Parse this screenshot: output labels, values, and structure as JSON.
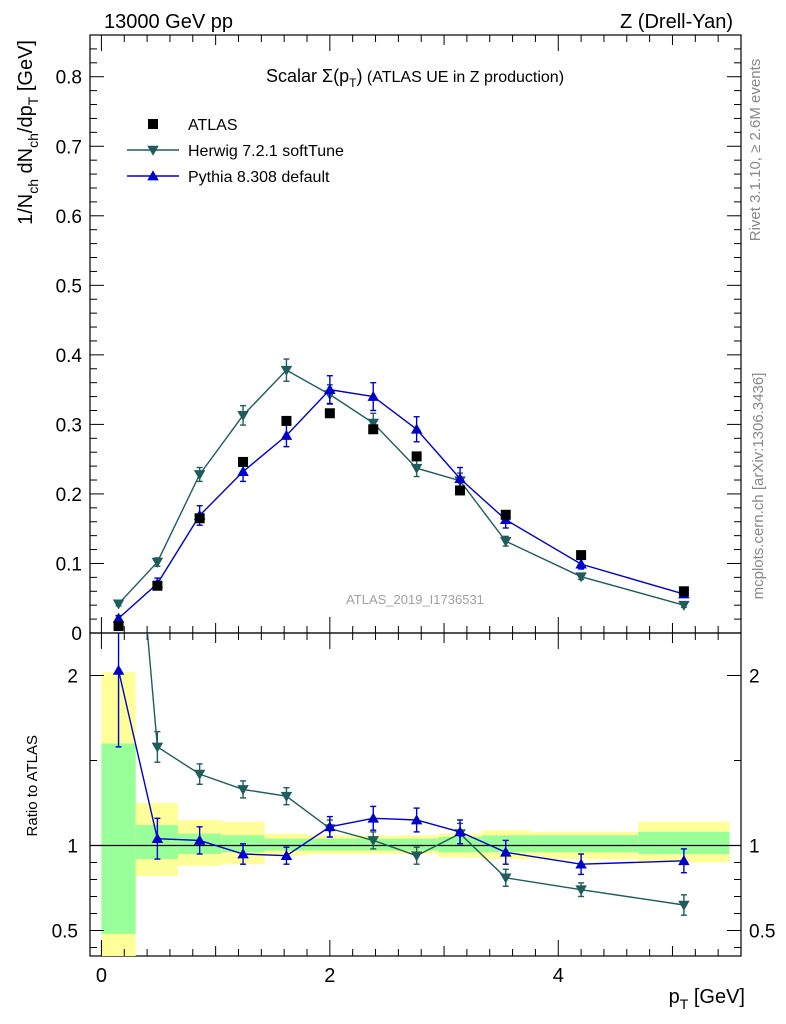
{
  "header": {
    "left": "13000 GeV pp",
    "right": "Z (Drell-Yan)"
  },
  "title": {
    "prefix": "Scalar ",
    "sigma": "Σ(p",
    "sigma_sub": "T",
    "sigma_close": ")",
    "suffix": " (ATLAS UE in Z production)"
  },
  "side": {
    "rivet": "Rivet 3.1.10, ≥ 2.6M events",
    "mcplots": "mcplots.cern.ch [arXiv:1306.3436]"
  },
  "watermark": "ATLAS_2019_I1736531",
  "axes": {
    "ylabel_main": {
      "a": "1/N",
      "a_sub": "ch",
      "b": " dN",
      "b_sub": "ch",
      "c": "/dp",
      "c_sub": "T",
      "d": " [GeV]"
    },
    "ylabel_ratio": "Ratio to ATLAS",
    "xlabel": {
      "a": "p",
      "a_sub": "T",
      "b": " [GeV]"
    }
  },
  "legend": [
    {
      "label": "ATLAS",
      "marker": "square",
      "color": "#000000"
    },
    {
      "label": "Herwig 7.2.1 softTune",
      "marker": "triangle-down",
      "color": "#1f5c5c"
    },
    {
      "label": "Pythia 8.308 default",
      "marker": "triangle-up",
      "color": "#0000cc"
    }
  ],
  "chart_data": {
    "type": "scatter",
    "xlim": [
      -0.1,
      5.6
    ],
    "ylim_main": [
      0,
      0.86
    ],
    "ylim_ratio": [
      0.35,
      2.25
    ],
    "x_ticks": [
      0,
      2,
      4
    ],
    "y_ticks_main": [
      0,
      0.1,
      0.2,
      0.3,
      0.4,
      0.5,
      0.6,
      0.7,
      0.8
    ],
    "y_tick_labels_main": [
      "0",
      "0.1",
      "0.2",
      "0.3",
      "0.4",
      "0.5",
      "0.6",
      "0.7",
      "0.8"
    ],
    "y_ticks_ratio": [
      0.5,
      1,
      2
    ],
    "y_tick_labels_ratio": [
      "0.5",
      "1",
      "2"
    ],
    "bins": [
      [
        0.0,
        0.3
      ],
      [
        0.3,
        0.67
      ],
      [
        0.67,
        1.05
      ],
      [
        1.05,
        1.43
      ],
      [
        1.43,
        1.8
      ],
      [
        1.8,
        2.2
      ],
      [
        2.2,
        2.57
      ],
      [
        2.57,
        2.95
      ],
      [
        2.95,
        3.33
      ],
      [
        3.33,
        3.75
      ],
      [
        3.75,
        4.7
      ],
      [
        4.7,
        5.5
      ]
    ],
    "x": [
      0.15,
      0.49,
      0.86,
      1.24,
      1.62,
      2.0,
      2.38,
      2.76,
      3.14,
      3.54,
      4.2,
      5.1
    ],
    "data": {
      "name": "ATLAS",
      "values": [
        0.01,
        0.068,
        0.165,
        0.246,
        0.305,
        0.316,
        0.293,
        0.254,
        0.205,
        0.17,
        0.112,
        0.06
      ],
      "band_inner": [
        [
          0.48,
          1.6
        ],
        [
          0.92,
          1.12
        ],
        [
          0.95,
          1.07
        ],
        [
          0.96,
          1.06
        ],
        [
          0.97,
          1.04
        ],
        [
          0.97,
          1.04
        ],
        [
          0.97,
          1.04
        ],
        [
          0.97,
          1.04
        ],
        [
          0.96,
          1.05
        ],
        [
          0.96,
          1.06
        ],
        [
          0.96,
          1.06
        ],
        [
          0.95,
          1.08
        ]
      ],
      "band_outer": [
        [
          0.33,
          2.02
        ],
        [
          0.82,
          1.25
        ],
        [
          0.88,
          1.15
        ],
        [
          0.89,
          1.14
        ],
        [
          0.94,
          1.07
        ],
        [
          0.95,
          1.06
        ],
        [
          0.95,
          1.06
        ],
        [
          0.95,
          1.06
        ],
        [
          0.93,
          1.07
        ],
        [
          0.92,
          1.09
        ],
        [
          0.92,
          1.08
        ],
        [
          0.9,
          1.14
        ]
      ]
    },
    "series": [
      {
        "name": "Herwig 7.2.1 softTune",
        "color": "#1f5c5c",
        "marker": "triangle-down",
        "values": [
          0.042,
          0.102,
          0.228,
          0.313,
          0.378,
          0.343,
          0.302,
          0.237,
          0.219,
          0.132,
          0.081,
          0.04
        ],
        "errors": [
          0.003,
          0.006,
          0.01,
          0.014,
          0.016,
          0.014,
          0.014,
          0.012,
          0.011,
          0.007,
          0.004,
          0.003
        ],
        "ratio": [
          4.2,
          1.58,
          1.42,
          1.33,
          1.29,
          1.1,
          1.03,
          0.94,
          1.07,
          0.81,
          0.74,
          0.65
        ],
        "ratio_err": [
          0.3,
          0.09,
          0.06,
          0.05,
          0.05,
          0.05,
          0.05,
          0.05,
          0.06,
          0.05,
          0.04,
          0.06
        ]
      },
      {
        "name": "Pythia 8.308 default",
        "color": "#0000cc",
        "marker": "triangle-up",
        "values": [
          0.021,
          0.071,
          0.169,
          0.232,
          0.284,
          0.35,
          0.34,
          0.293,
          0.222,
          0.163,
          0.099,
          0.056
        ],
        "errors": [
          0.004,
          0.008,
          0.014,
          0.014,
          0.016,
          0.02,
          0.02,
          0.018,
          0.016,
          0.012,
          0.007,
          0.004
        ],
        "ratio": [
          2.03,
          1.04,
          1.03,
          0.95,
          0.94,
          1.11,
          1.16,
          1.15,
          1.08,
          0.96,
          0.89,
          0.91
        ],
        "ratio_err": [
          0.45,
          0.12,
          0.08,
          0.06,
          0.05,
          0.06,
          0.07,
          0.07,
          0.07,
          0.07,
          0.06,
          0.07
        ]
      }
    ]
  }
}
